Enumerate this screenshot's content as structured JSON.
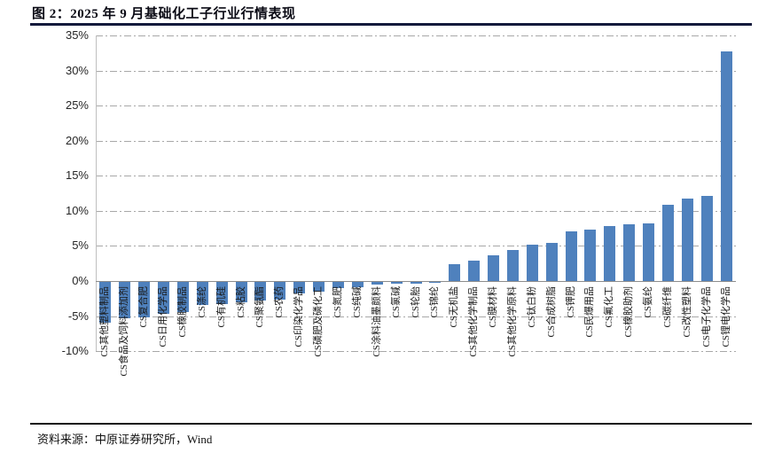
{
  "figure": {
    "title": "图 2：2025 年 9 月基础化工子行业行情表现",
    "source_label": "资料来源：中原证券研究所，Wind"
  },
  "chart_data": {
    "type": "bar",
    "title": "2025年9月基础化工子行业行情表现",
    "categories": [
      "CS其他塑料制品",
      "CS食品及饲料添加剂",
      "CS复合肥",
      "CS日用化学品",
      "CS橡胶制品",
      "CS涤纶",
      "CS有机硅",
      "CS粘胶",
      "CS聚氨酯",
      "CS农药",
      "CS印染化学品",
      "CS磷肥及磷化工",
      "CS氮肥",
      "CS纯碱",
      "CS涂料油墨颜料",
      "CS氯碱",
      "CS轮胎",
      "CS锦纶",
      "CS无机盐",
      "CS其他化学制品",
      "CS膜材料",
      "CS其他化学原料",
      "CS钛白粉",
      "CS合成树脂",
      "CS钾肥",
      "CS民爆用品",
      "CS氟化工",
      "CS橡胶助剂",
      "CS氨纶",
      "CS碳纤维",
      "CS改性塑料",
      "CS电子化学品",
      "CS锂电化学品"
    ],
    "values": [
      -5.8,
      -5.2,
      -5.0,
      -4.6,
      -4.3,
      -3.3,
      -3.2,
      -2.9,
      -2.7,
      -2.5,
      -1.7,
      -1.4,
      -0.9,
      -0.7,
      -0.4,
      -0.3,
      -0.2,
      -0.1,
      2.4,
      2.9,
      3.7,
      4.4,
      5.2,
      5.4,
      7.1,
      7.3,
      7.8,
      8.1,
      8.2,
      10.9,
      11.8,
      12.1,
      32.8
    ],
    "xlabel": "",
    "ylabel": "",
    "ylim": [
      -10,
      35
    ],
    "ytick_step": 5,
    "ytick_format": "percent",
    "grid": "horizontal-dash-dot",
    "legend": "none",
    "bar_color": "#4F81BD"
  }
}
